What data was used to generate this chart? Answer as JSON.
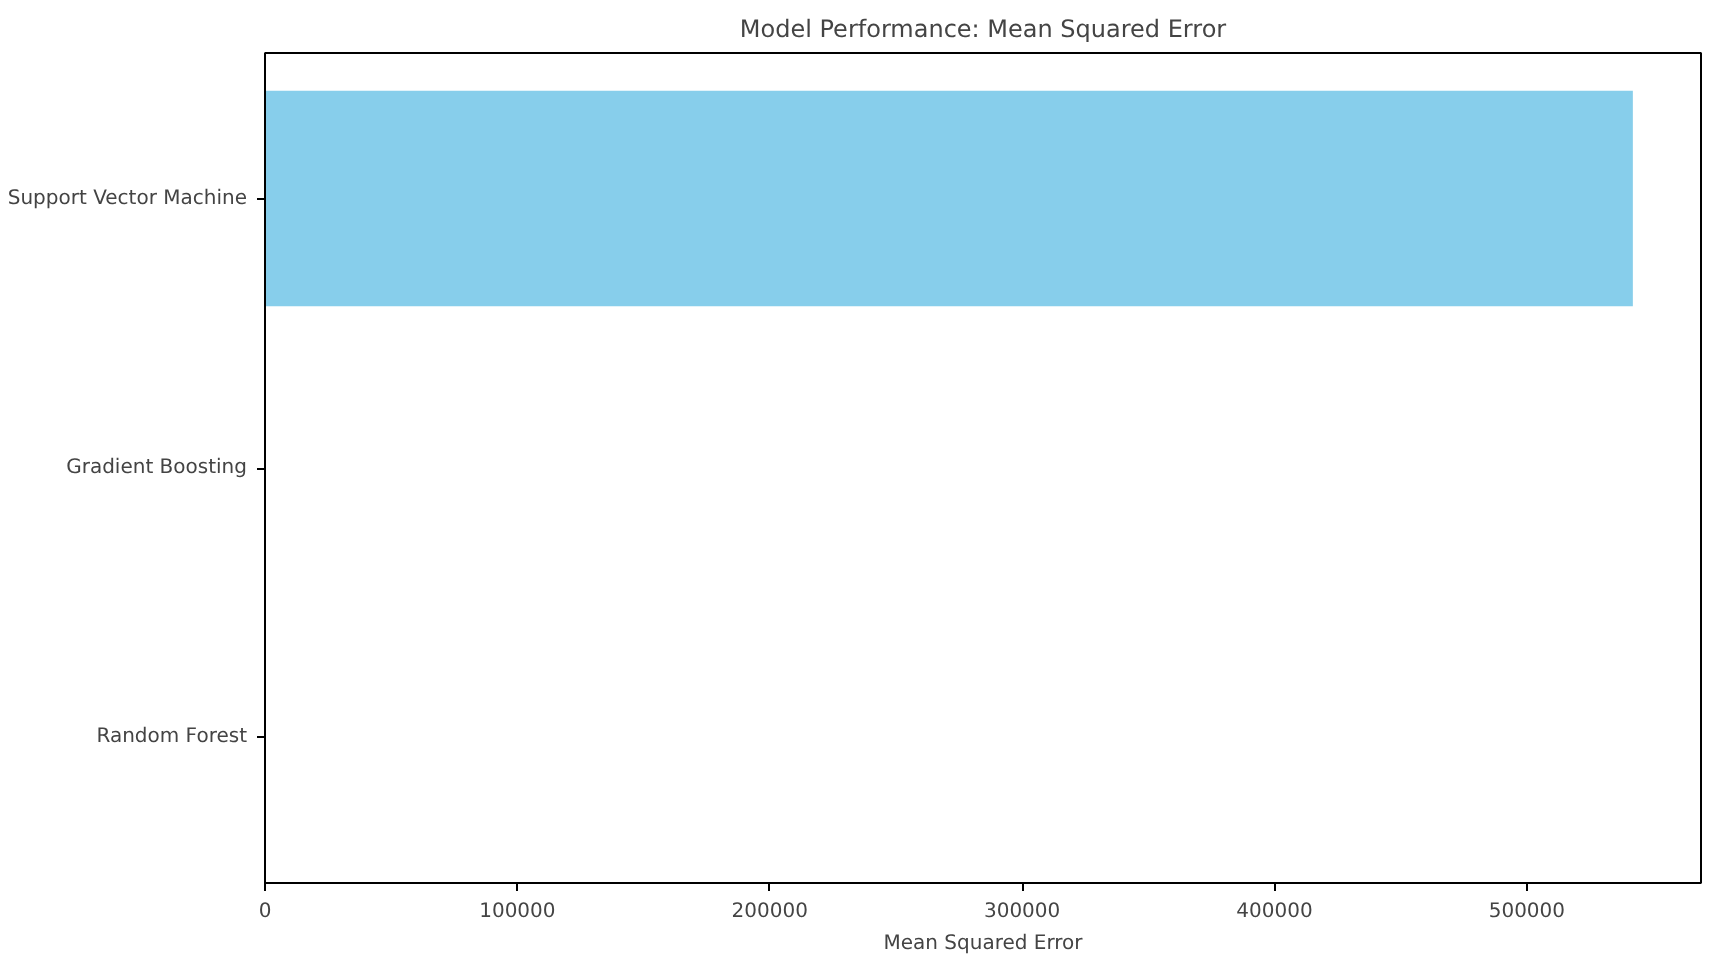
{
  "chart_data": {
    "type": "bar",
    "orientation": "horizontal",
    "title": "Model Performance: Mean Squared Error",
    "xlabel": "Mean Squared Error",
    "categories": [
      "Support Vector Machine",
      "Gradient Boosting",
      "Random Forest"
    ],
    "values": [
      542000,
      0,
      0
    ],
    "color": "#87ceeb",
    "xlim": [
      0,
      569000
    ],
    "xticks": [
      0,
      100000,
      200000,
      300000,
      400000,
      500000
    ],
    "grid": false
  }
}
